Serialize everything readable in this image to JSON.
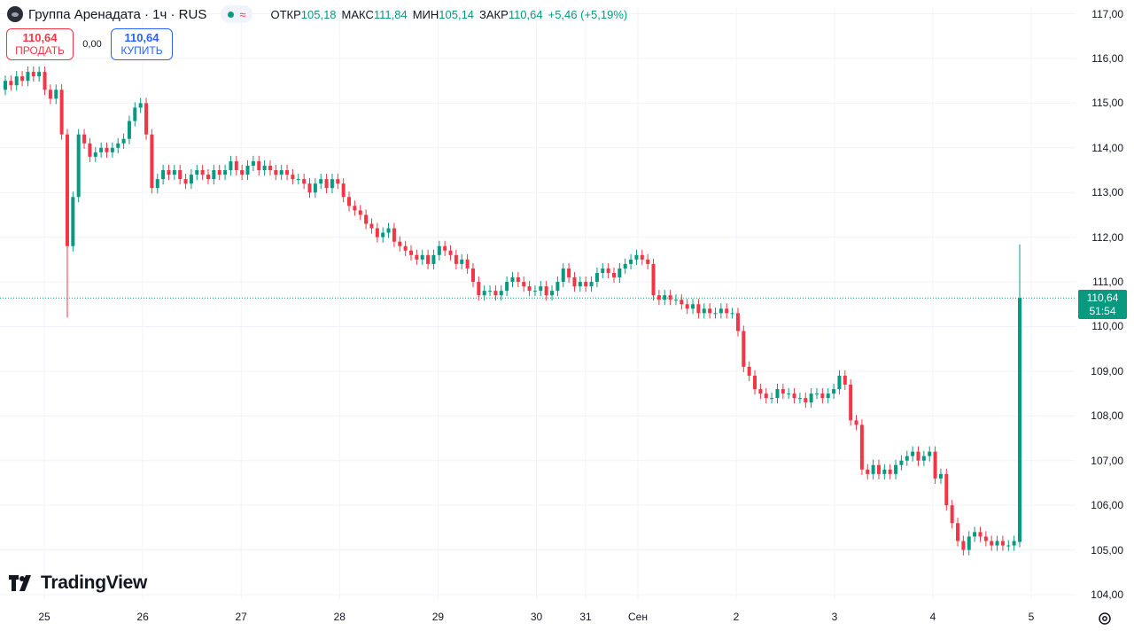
{
  "header": {
    "symbol": "Группа Аренадата · 1ч · RUS",
    "wave_glyph": "≈",
    "open_label": "ОТКР",
    "open": "105,18",
    "high_label": "МАКС",
    "high": "111,84",
    "low_label": "МИН",
    "low": "105,14",
    "close_label": "ЗАКР",
    "close": "110,64",
    "change": "+5,46 (+5,19%)"
  },
  "trade": {
    "sell_price": "110,64",
    "sell_label": "ПРОДАТЬ",
    "spread": "0,00",
    "buy_price": "110,64",
    "buy_label": "КУПИТЬ"
  },
  "price_tag": {
    "price": "110,64",
    "countdown": "51:54"
  },
  "brand": "TradingView",
  "colors": {
    "up": "#089981",
    "down": "#f23645",
    "grid": "#f0f3fa",
    "last_line": "#089981"
  },
  "chart_data": {
    "type": "candlestick",
    "y_axis": {
      "labels": [
        "117,00",
        "116,00",
        "115,00",
        "114,00",
        "113,00",
        "112,00",
        "111,00",
        "110,00",
        "109,00",
        "108,00",
        "107,00",
        "106,00",
        "105,00",
        "104,00"
      ],
      "ylim": [
        103.9,
        117.15
      ]
    },
    "x_axis": {
      "labels": [
        "25",
        "26",
        "27",
        "28",
        "29",
        "30",
        "31",
        "Сен",
        "2",
        "3",
        "4",
        "5"
      ]
    },
    "last_price": 110.64,
    "candles_close": [
      115.5,
      115.4,
      115.6,
      115.5,
      115.7,
      115.6,
      115.7,
      115.3,
      115.1,
      115.3,
      114.3,
      111.8,
      112.9,
      114.3,
      114.1,
      113.8,
      113.9,
      114.0,
      113.9,
      114.0,
      114.1,
      114.2,
      114.6,
      114.9,
      115.0,
      114.3,
      113.1,
      113.3,
      113.5,
      113.4,
      113.5,
      113.3,
      113.2,
      113.4,
      113.5,
      113.4,
      113.3,
      113.5,
      113.4,
      113.5,
      113.7,
      113.5,
      113.4,
      113.6,
      113.7,
      113.5,
      113.6,
      113.5,
      113.4,
      113.5,
      113.4,
      113.3,
      113.3,
      113.2,
      113.0,
      113.2,
      113.3,
      113.1,
      113.3,
      113.2,
      112.9,
      112.7,
      112.6,
      112.5,
      112.3,
      112.2,
      112.0,
      112.1,
      112.2,
      111.9,
      111.8,
      111.7,
      111.6,
      111.5,
      111.6,
      111.4,
      111.6,
      111.8,
      111.7,
      111.6,
      111.4,
      111.5,
      111.3,
      111.0,
      110.7,
      110.8,
      110.8,
      110.7,
      110.8,
      111.0,
      111.1,
      111.0,
      110.9,
      110.8,
      110.8,
      110.9,
      110.7,
      110.8,
      111.0,
      111.3,
      111.1,
      110.9,
      111.0,
      110.9,
      111.0,
      111.2,
      111.3,
      111.2,
      111.1,
      111.3,
      111.4,
      111.5,
      111.6,
      111.5,
      111.4,
      110.7,
      110.6,
      110.7,
      110.6,
      110.6,
      110.5,
      110.4,
      110.5,
      110.3,
      110.4,
      110.3,
      110.3,
      110.4,
      110.3,
      110.3,
      109.9,
      109.1,
      108.9,
      108.6,
      108.5,
      108.4,
      108.4,
      108.6,
      108.5,
      108.5,
      108.4,
      108.4,
      108.3,
      108.5,
      108.5,
      108.4,
      108.5,
      108.6,
      108.9,
      108.7,
      107.9,
      107.8,
      106.8,
      106.7,
      106.9,
      106.7,
      106.8,
      106.7,
      106.9,
      107.0,
      107.1,
      107.2,
      107.0,
      107.1,
      107.2,
      106.6,
      106.7,
      106.0,
      105.6,
      105.2,
      105.0,
      105.3,
      105.4,
      105.3,
      105.2,
      105.1,
      105.2,
      105.1,
      105.1,
      105.2,
      110.64
    ]
  }
}
